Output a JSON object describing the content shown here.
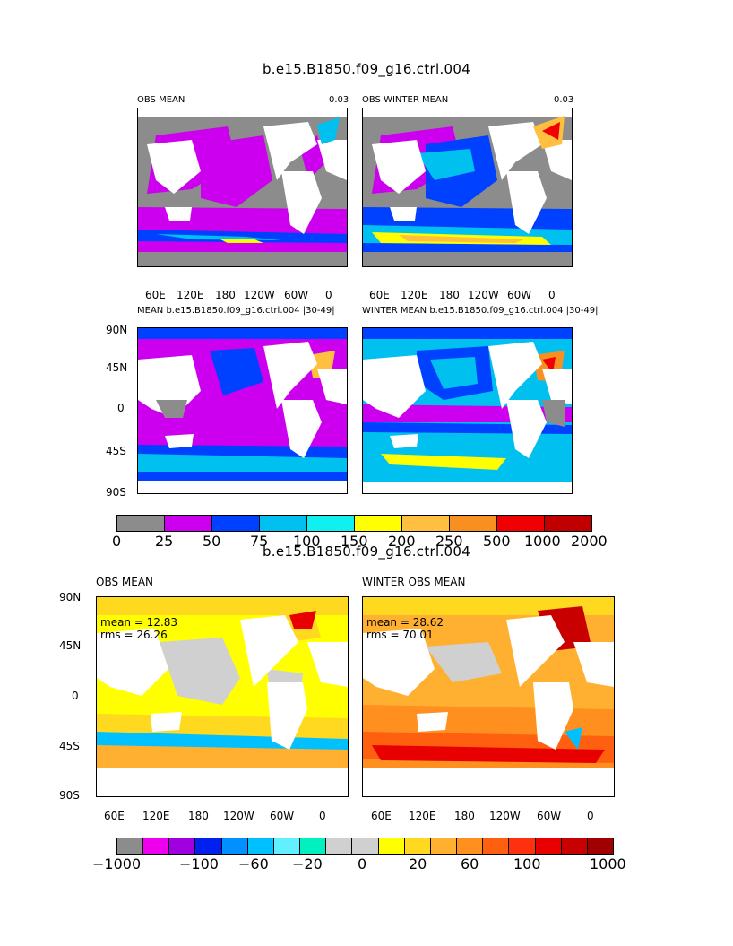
{
  "top_title": "b.e15.B1850.f09_g16.ctrl.004",
  "bottom_title": "b.e15.B1850.f09_g16.ctrl.004",
  "panels": {
    "obs_mean": {
      "label": "OBS MEAN",
      "value": "0.03"
    },
    "obs_winter_mean": {
      "label": "OBS WINTER MEAN",
      "value": "0.03"
    },
    "model_mean": {
      "label": "MEAN b.e15.B1850.f09_g16.ctrl.004  |30-49|"
    },
    "model_winter_mean": {
      "label": "WINTER MEAN b.e15.B1850.f09_g16.ctrl.004  |30-49|"
    },
    "diff_obs_mean": {
      "label": "OBS MEAN",
      "mean": "mean = 12.83",
      "rms": "rms = 26.26"
    },
    "diff_winter_obs_mean": {
      "label": "WINTER OBS MEAN",
      "mean": "mean = 28.62",
      "rms": "rms = 70.01"
    }
  },
  "lon_ticks": [
    "60E",
    "120E",
    "180",
    "120W",
    "60W",
    "0"
  ],
  "lat_ticks": [
    "90N",
    "45N",
    "0",
    "45S",
    "90S"
  ],
  "colorbar_top": {
    "labels": [
      "0",
      "25",
      "50",
      "75",
      "100",
      "150",
      "200",
      "250",
      "500",
      "1000",
      "2000"
    ],
    "colors": [
      "#8c8c8c",
      "#cc00ee",
      "#0040ff",
      "#00c0f0",
      "#10f0ee",
      "#ffff00",
      "#ffc040",
      "#f79020",
      "#f00000",
      "#c00000"
    ]
  },
  "colorbar_bottom": {
    "labels": [
      "−1000",
      "−100",
      "−60",
      "−20",
      "0",
      "20",
      "60",
      "100",
      "1000"
    ],
    "colors": [
      "#8c8c8c",
      "#ee00ee",
      "#a000e0",
      "#0020f0",
      "#0090ff",
      "#00c0ff",
      "#60f0ff",
      "#00f0c0",
      "#d0d0d0",
      "#d0d0d0",
      "#ffff00",
      "#ffd820",
      "#ffb030",
      "#ff9020",
      "#ff6010",
      "#ff3010",
      "#e80000",
      "#c80000",
      "#a00000"
    ]
  }
}
